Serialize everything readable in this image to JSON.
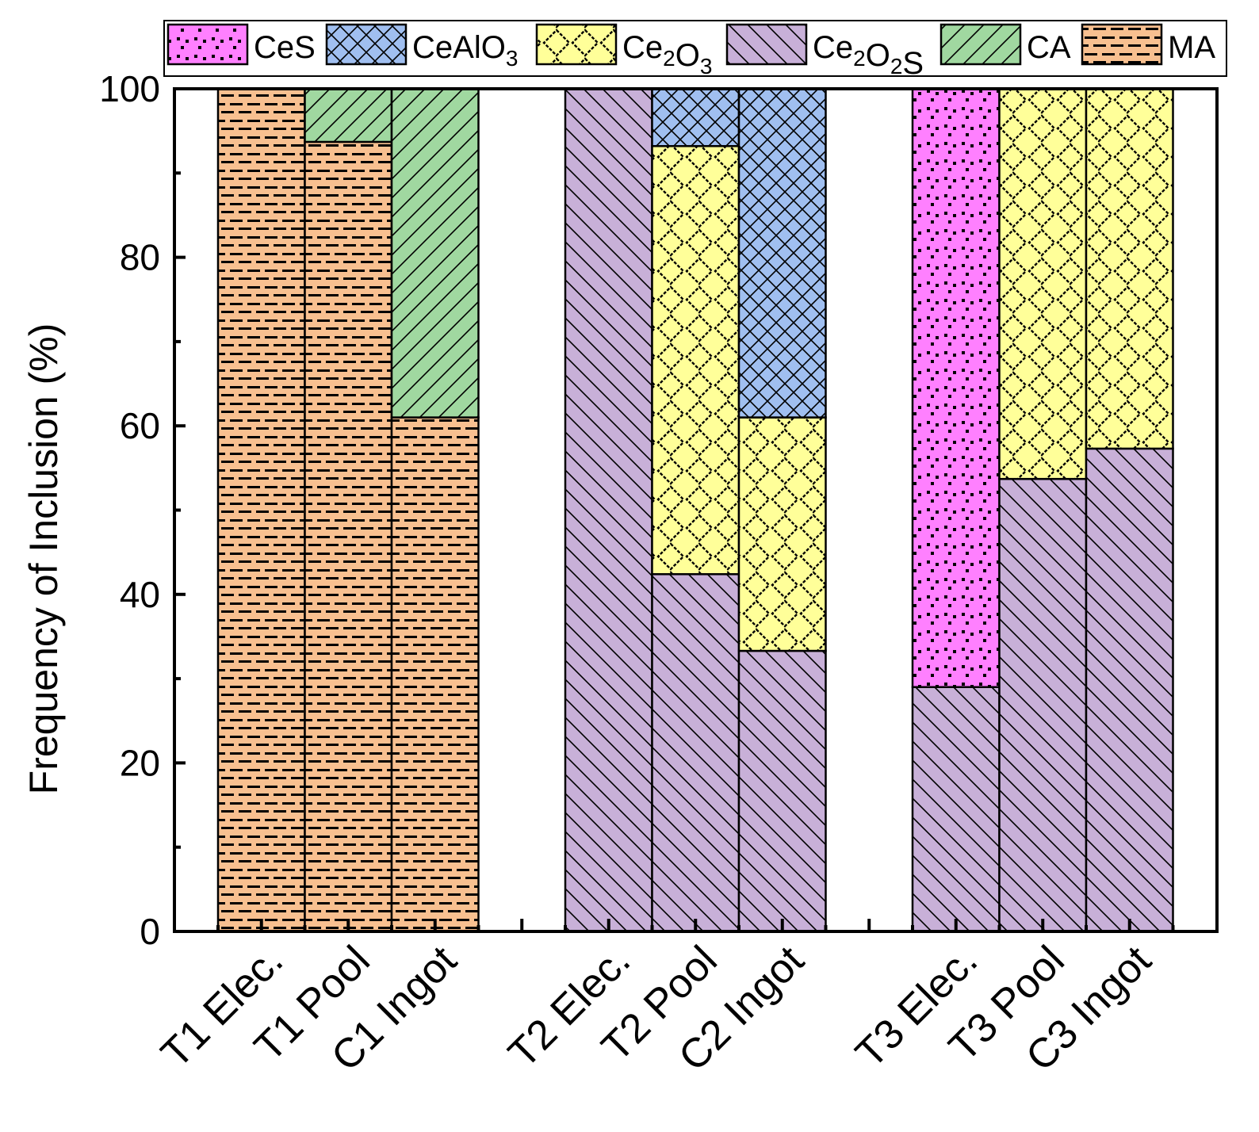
{
  "chart_data": {
    "type": "bar",
    "stacked": true,
    "title": "",
    "xlabel": "",
    "ylabel": "Frequency of Inclusion (%)",
    "ylim": [
      0,
      100
    ],
    "yticks": [
      0,
      20,
      40,
      60,
      80,
      100
    ],
    "categories": [
      "T1 Elec.",
      "T1 Pool",
      "C1 Ingot",
      "T2 Elec.",
      "T2 Pool",
      "C2 Ingot",
      "T3 Elec.",
      "T3 Pool",
      "C3 Ingot"
    ],
    "category_slots": [
      0,
      1,
      2,
      4,
      5,
      6,
      8,
      9,
      10
    ],
    "legend_position": "top",
    "series": [
      {
        "name": "CeS",
        "legend": {
          "main": "CeS",
          "sub": "",
          "tail": ""
        },
        "color": "#ff80ff",
        "pattern": "dots",
        "values": [
          0,
          0,
          0,
          0,
          0,
          0,
          71,
          0,
          0
        ]
      },
      {
        "name": "CeAlO3",
        "legend": {
          "main": "CeAlO",
          "sub": "3",
          "tail": ""
        },
        "color": "#a0bff0",
        "pattern": "crosshatch",
        "values": [
          0,
          0,
          0,
          0,
          6.8,
          39,
          0,
          0,
          0
        ]
      },
      {
        "name": "Ce2O3",
        "legend": {
          "main": "Ce",
          "sub": "2",
          "tail": "O",
          "sub2": "3"
        },
        "color": "#ffff99",
        "pattern": "diamond",
        "values": [
          0,
          0,
          0,
          0,
          50.8,
          27.7,
          0,
          46.3,
          42.7
        ]
      },
      {
        "name": "Ce2O2S",
        "legend": {
          "main": "Ce",
          "sub": "2",
          "tail": "O",
          "sub2": "2",
          "tail2": "S"
        },
        "color": "#c8b0d8",
        "pattern": "backslash",
        "values": [
          0,
          0,
          0,
          100,
          42.4,
          33.3,
          29,
          53.7,
          57.3
        ]
      },
      {
        "name": "CA",
        "legend": {
          "main": "CA",
          "sub": "",
          "tail": ""
        },
        "color": "#a0d8a0",
        "pattern": "slash",
        "values": [
          0,
          6.3,
          39,
          0,
          0,
          0,
          0,
          0,
          0
        ]
      },
      {
        "name": "MA",
        "legend": {
          "main": "MA",
          "sub": "",
          "tail": ""
        },
        "color": "#f8c090",
        "pattern": "dashes",
        "values": [
          100,
          93.7,
          61,
          0,
          0,
          0,
          0,
          0,
          0
        ]
      }
    ],
    "stack_order": [
      "MA",
      "CA",
      "Ce2O2S",
      "Ce2O3",
      "CeAlO3",
      "CeS"
    ]
  }
}
